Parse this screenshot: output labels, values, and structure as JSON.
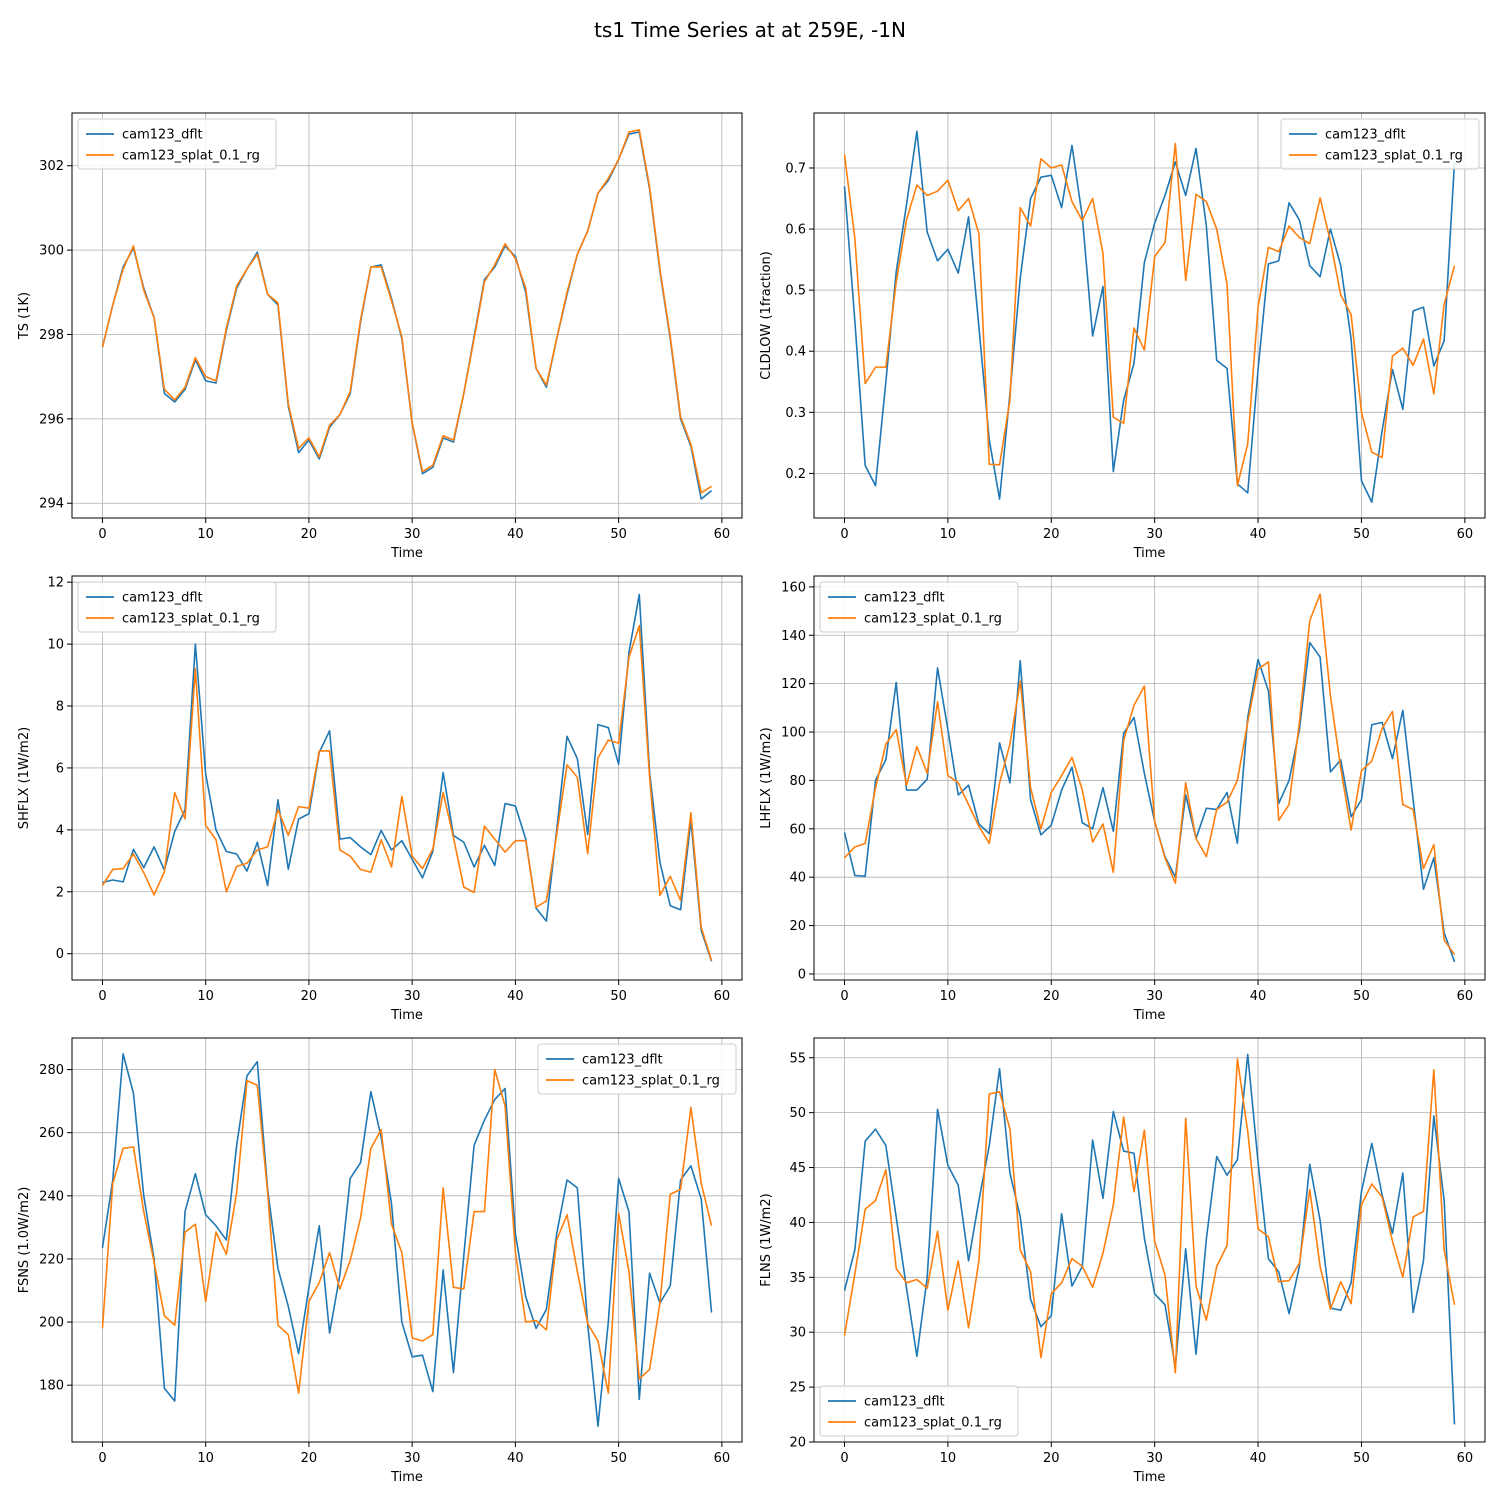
{
  "figure": {
    "title": "ts1 Time Series at at 259E, -1N"
  },
  "colors": {
    "cam123_dflt": "#1f77b4",
    "cam123_splat_0.1_rg": "#ff7f0e",
    "grid": "#b0b0b0"
  },
  "chart_data": [
    {
      "type": "line",
      "xlabel": "Time",
      "ylabel": "TS (1K)",
      "xlim": [
        -2.95,
        61.95
      ],
      "ylim": [
        293.65,
        303.25
      ],
      "xticks": [
        0,
        10,
        20,
        30,
        40,
        50,
        60
      ],
      "yticks": [
        294,
        296,
        298,
        300,
        302
      ],
      "grid": true,
      "legend": "top-left",
      "series": [
        {
          "name": "cam123_dflt",
          "values": [
            297.7,
            298.7,
            299.6,
            300.05,
            299.1,
            298.4,
            296.6,
            296.4,
            296.7,
            297.4,
            296.9,
            296.85,
            298.1,
            299.1,
            299.55,
            299.95,
            298.95,
            298.7,
            296.3,
            295.2,
            295.5,
            295.05,
            295.8,
            296.1,
            296.6,
            298.3,
            299.6,
            299.65,
            298.85,
            297.9,
            295.9,
            294.7,
            294.85,
            295.55,
            295.45,
            296.6,
            297.95,
            299.3,
            299.6,
            300.1,
            299.85,
            299.0,
            297.2,
            296.75,
            297.9,
            298.95,
            299.9,
            300.45,
            301.35,
            301.65,
            302.15,
            302.75,
            302.8,
            301.45,
            299.5,
            297.9,
            296.0,
            295.35,
            294.1,
            294.3
          ]
        },
        {
          "name": "cam123_splat_0.1_rg",
          "values": [
            297.7,
            298.7,
            299.55,
            300.1,
            299.05,
            298.4,
            296.7,
            296.45,
            296.75,
            297.45,
            297.0,
            296.9,
            298.15,
            299.15,
            299.55,
            299.9,
            298.95,
            298.75,
            296.35,
            295.3,
            295.55,
            295.1,
            295.85,
            296.1,
            296.65,
            298.35,
            299.6,
            299.6,
            298.8,
            297.95,
            295.9,
            294.75,
            294.9,
            295.6,
            295.5,
            296.6,
            297.9,
            299.25,
            299.65,
            300.15,
            299.8,
            299.1,
            297.2,
            296.8,
            297.9,
            299.0,
            299.9,
            300.45,
            301.35,
            301.7,
            302.15,
            302.8,
            302.85,
            301.5,
            299.55,
            297.95,
            296.05,
            295.4,
            294.25,
            294.4
          ]
        }
      ]
    },
    {
      "type": "line",
      "xlabel": "Time",
      "ylabel": "CLDLOW (1fraction)",
      "xlim": [
        -2.95,
        61.95
      ],
      "ylim": [
        0.127,
        0.79
      ],
      "xticks": [
        0,
        10,
        20,
        30,
        40,
        50,
        60
      ],
      "yticks": [
        0.2,
        0.3,
        0.4,
        0.5,
        0.6,
        0.7
      ],
      "grid": true,
      "legend": "top-right",
      "series": [
        {
          "name": "cam123_dflt",
          "values": [
            0.67,
            0.45,
            0.213,
            0.18,
            0.35,
            0.53,
            0.64,
            0.76,
            0.595,
            0.548,
            0.567,
            0.528,
            0.62,
            0.44,
            0.255,
            0.158,
            0.33,
            0.52,
            0.65,
            0.685,
            0.688,
            0.635,
            0.737,
            0.62,
            0.425,
            0.506,
            0.203,
            0.32,
            0.38,
            0.545,
            0.61,
            0.655,
            0.71,
            0.655,
            0.732,
            0.605,
            0.385,
            0.372,
            0.183,
            0.168,
            0.37,
            0.543,
            0.548,
            0.643,
            0.615,
            0.54,
            0.522,
            0.6,
            0.54,
            0.42,
            0.188,
            0.153,
            0.27,
            0.37,
            0.305,
            0.466,
            0.472,
            0.376,
            0.417,
            0.71
          ]
        },
        {
          "name": "cam123_splat_0.1_rg",
          "values": [
            0.722,
            0.585,
            0.347,
            0.374,
            0.374,
            0.513,
            0.615,
            0.672,
            0.655,
            0.662,
            0.68,
            0.63,
            0.65,
            0.592,
            0.215,
            0.214,
            0.32,
            0.635,
            0.605,
            0.715,
            0.7,
            0.705,
            0.645,
            0.614,
            0.65,
            0.56,
            0.292,
            0.282,
            0.438,
            0.402,
            0.555,
            0.578,
            0.74,
            0.516,
            0.657,
            0.645,
            0.6,
            0.51,
            0.18,
            0.248,
            0.472,
            0.57,
            0.563,
            0.605,
            0.586,
            0.576,
            0.651,
            0.58,
            0.492,
            0.46,
            0.3,
            0.235,
            0.226,
            0.392,
            0.405,
            0.377,
            0.42,
            0.33,
            0.477,
            0.54
          ]
        }
      ]
    },
    {
      "type": "line",
      "xlabel": "Time",
      "ylabel": "SHFLX (1W/m2)",
      "xlim": [
        -2.95,
        61.95
      ],
      "ylim": [
        -0.85,
        12.2
      ],
      "xticks": [
        0,
        10,
        20,
        30,
        40,
        50,
        60
      ],
      "yticks": [
        0,
        2,
        4,
        6,
        8,
        10,
        12
      ],
      "grid": true,
      "legend": "top-left",
      "series": [
        {
          "name": "cam123_dflt",
          "values": [
            2.3,
            2.38,
            2.32,
            3.37,
            2.78,
            3.45,
            2.7,
            3.95,
            4.65,
            10.0,
            5.8,
            4.0,
            3.3,
            3.22,
            2.67,
            3.6,
            2.2,
            4.97,
            2.73,
            4.35,
            4.52,
            6.5,
            7.2,
            3.7,
            3.75,
            3.45,
            3.2,
            3.98,
            3.35,
            3.65,
            3.05,
            2.45,
            3.3,
            5.85,
            3.82,
            3.6,
            2.8,
            3.5,
            2.85,
            4.85,
            4.77,
            3.7,
            1.47,
            1.05,
            4.0,
            7.02,
            6.3,
            3.85,
            7.4,
            7.3,
            6.12,
            9.73,
            11.6,
            5.85,
            2.95,
            1.55,
            1.42,
            4.3,
            0.75,
            -0.25
          ]
        },
        {
          "name": "cam123_splat_0.1_rg",
          "values": [
            2.2,
            2.72,
            2.75,
            3.22,
            2.62,
            1.9,
            2.65,
            5.2,
            4.35,
            9.2,
            4.15,
            3.68,
            2.0,
            2.82,
            2.92,
            3.35,
            3.45,
            4.65,
            3.82,
            4.75,
            4.7,
            6.55,
            6.55,
            3.35,
            3.15,
            2.72,
            2.63,
            3.68,
            2.8,
            5.08,
            3.15,
            2.75,
            3.38,
            5.2,
            3.75,
            2.15,
            1.98,
            4.12,
            3.7,
            3.28,
            3.65,
            3.65,
            1.5,
            1.7,
            3.85,
            6.1,
            5.7,
            3.23,
            6.33,
            6.9,
            6.8,
            9.57,
            10.6,
            5.7,
            1.88,
            2.5,
            1.72,
            4.55,
            0.85,
            -0.22
          ]
        }
      ]
    },
    {
      "type": "line",
      "xlabel": "Time",
      "ylabel": "LHFLX (1W/m2)",
      "xlim": [
        -2.95,
        61.95
      ],
      "ylim": [
        -2.5,
        164.5
      ],
      "xticks": [
        0,
        10,
        20,
        30,
        40,
        50,
        60
      ],
      "yticks": [
        0,
        20,
        40,
        60,
        80,
        100,
        120,
        140,
        160
      ],
      "grid": true,
      "legend": "top-left",
      "series": [
        {
          "name": "cam123_dflt",
          "values": [
            58.5,
            40.7,
            40.4,
            80.0,
            88.5,
            120.5,
            76.0,
            76.0,
            80.5,
            126.5,
            101.0,
            74.0,
            78.0,
            62.0,
            58.0,
            95.5,
            79.0,
            129.5,
            72.0,
            57.5,
            61.5,
            76.0,
            85.5,
            62.5,
            60.0,
            77.0,
            59.0,
            99.5,
            106.0,
            83.0,
            63.0,
            48.5,
            40.0,
            74.0,
            56.0,
            68.5,
            68.0,
            75.0,
            54.0,
            106.0,
            130.0,
            117.0,
            70.5,
            80.0,
            101.0,
            137.0,
            131.0,
            83.5,
            88.5,
            65.0,
            72.0,
            103.0,
            104.0,
            89.0,
            109.0,
            72.0,
            35.0,
            48.0,
            17.0,
            5.0
          ]
        },
        {
          "name": "cam123_splat_0.1_rg",
          "values": [
            48.0,
            52.5,
            54.0,
            77.0,
            95.0,
            101.0,
            78.0,
            94.0,
            83.0,
            112.5,
            82.0,
            79.0,
            70.0,
            61.0,
            54.0,
            79.0,
            95.0,
            121.0,
            77.0,
            60.0,
            75.0,
            82.0,
            89.5,
            76.0,
            54.5,
            62.0,
            42.0,
            96.5,
            111.0,
            119.0,
            63.0,
            48.0,
            37.5,
            79.0,
            56.0,
            48.5,
            68.0,
            71.0,
            80.0,
            104.0,
            126.0,
            129.0,
            63.5,
            70.0,
            104.0,
            146.0,
            157.0,
            115.0,
            85.0,
            59.5,
            84.0,
            88.0,
            101.5,
            108.5,
            70.0,
            68.0,
            43.5,
            53.5,
            14.0,
            8.0
          ]
        }
      ]
    },
    {
      "type": "line",
      "xlabel": "Time",
      "ylabel": "FSNS (1.0W/m2)",
      "xlim": [
        -2.95,
        61.95
      ],
      "ylim": [
        162.0,
        290.0
      ],
      "xticks": [
        0,
        10,
        20,
        30,
        40,
        50,
        60
      ],
      "yticks": [
        180,
        200,
        220,
        240,
        260,
        280
      ],
      "grid": true,
      "legend": "top-right",
      "series": [
        {
          "name": "cam123_dflt",
          "values": [
            223.5,
            245.0,
            285.0,
            272.5,
            240.0,
            220.0,
            179.0,
            175.0,
            235.0,
            247.0,
            234.0,
            230.5,
            226.0,
            256.0,
            278.0,
            282.5,
            242.0,
            217.0,
            205.0,
            190.0,
            211.0,
            230.5,
            196.5,
            215.0,
            245.5,
            250.5,
            273.0,
            258.5,
            237.5,
            200.0,
            189.0,
            189.5,
            178.0,
            216.5,
            184.0,
            221.0,
            256.0,
            264.0,
            270.5,
            274.0,
            228.0,
            208.0,
            198.0,
            204.0,
            228.0,
            245.0,
            242.5,
            199.5,
            167.0,
            200.0,
            245.5,
            235.0,
            175.5,
            215.5,
            206.0,
            211.5,
            245.0,
            249.5,
            239.0,
            203.0
          ]
        },
        {
          "name": "cam123_splat_0.1_rg",
          "values": [
            198.0,
            244.0,
            255.0,
            255.5,
            235.0,
            219.0,
            202.0,
            199.0,
            228.5,
            231.0,
            206.5,
            228.5,
            221.5,
            241.0,
            276.5,
            275.0,
            241.0,
            199.0,
            196.0,
            177.5,
            206.5,
            212.5,
            222.0,
            210.5,
            219.5,
            233.0,
            255.0,
            261.0,
            231.0,
            222.0,
            195.0,
            194.0,
            196.0,
            242.5,
            211.0,
            210.5,
            235.0,
            235.0,
            280.0,
            268.5,
            222.0,
            200.0,
            200.5,
            197.5,
            226.0,
            234.0,
            216.0,
            199.5,
            194.0,
            177.5,
            234.5,
            216.0,
            182.0,
            185.0,
            206.0,
            240.5,
            242.0,
            268.0,
            244.0,
            230.5
          ]
        }
      ]
    },
    {
      "type": "line",
      "xlabel": "Time",
      "ylabel": "FLNS (1W/m2)",
      "xlim": [
        -2.95,
        61.95
      ],
      "ylim": [
        20.0,
        56.8
      ],
      "xticks": [
        0,
        10,
        20,
        30,
        40,
        50,
        60
      ],
      "yticks": [
        20,
        25,
        30,
        35,
        40,
        45,
        50,
        55
      ],
      "grid": true,
      "legend": "bottom-left",
      "series": [
        {
          "name": "cam123_dflt",
          "values": [
            33.8,
            37.5,
            47.4,
            48.5,
            47.0,
            40.5,
            34.0,
            27.8,
            35.0,
            50.3,
            45.2,
            43.4,
            36.5,
            42.0,
            47.0,
            54.0,
            44.5,
            40.5,
            33.0,
            30.5,
            31.5,
            40.8,
            34.2,
            36.0,
            47.5,
            42.2,
            50.1,
            46.5,
            46.3,
            38.6,
            33.5,
            32.5,
            26.8,
            37.6,
            28.0,
            38.5,
            46.0,
            44.3,
            45.7,
            55.3,
            45.5,
            36.7,
            35.5,
            31.7,
            36.0,
            45.3,
            40.2,
            32.2,
            32.0,
            34.5,
            42.8,
            47.2,
            42.5,
            39.0,
            44.5,
            31.8,
            36.5,
            49.7,
            42.0,
            21.6
          ]
        },
        {
          "name": "cam123_splat_0.1_rg",
          "values": [
            29.7,
            35.3,
            41.2,
            42.0,
            44.8,
            35.8,
            34.5,
            34.8,
            34.0,
            39.2,
            32.0,
            36.5,
            30.4,
            36.5,
            51.7,
            51.9,
            48.5,
            37.5,
            35.5,
            27.7,
            33.5,
            34.5,
            36.7,
            36.0,
            34.1,
            37.2,
            41.6,
            49.6,
            42.8,
            48.4,
            38.3,
            35.2,
            26.3,
            49.5,
            34.2,
            31.1,
            36.0,
            37.9,
            54.9,
            48.3,
            39.4,
            38.7,
            34.6,
            34.7,
            36.3,
            43.0,
            36.0,
            32.1,
            34.6,
            32.6,
            41.6,
            43.5,
            42.3,
            38.3,
            35.0,
            40.5,
            41.0,
            53.9,
            37.5,
            32.5
          ]
        }
      ]
    }
  ]
}
